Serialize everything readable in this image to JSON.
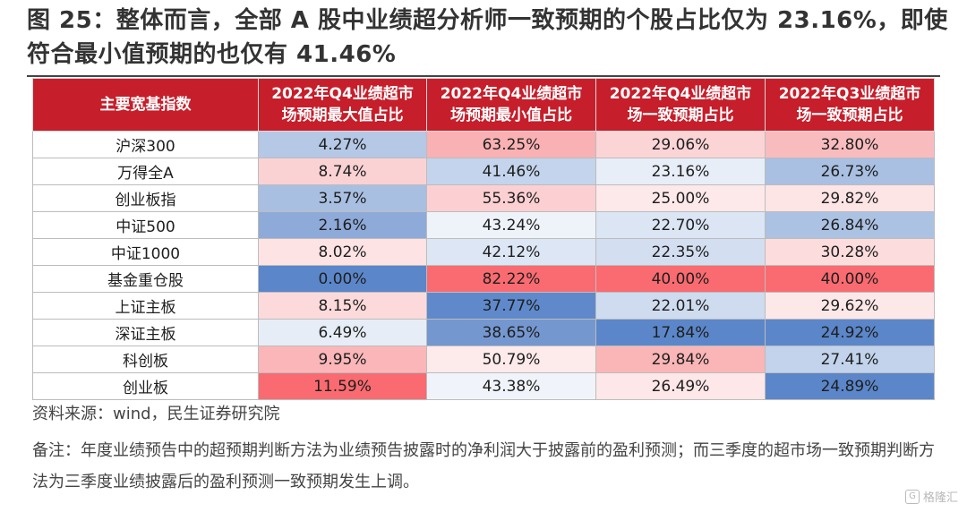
{
  "title": "图 25：整体而言，全部 A 股中业绩超分析师一致预期的个股占比仅为 23.16%，即使符合最小值预期的也仅有 41.46%",
  "table": {
    "headers": [
      "主要宽基指数",
      "2022年Q4业绩超市场预期最大值占比",
      "2022年Q4业绩超市场预期最小值占比",
      "2022年Q4业绩超市场一致预期占比",
      "2022年Q3业绩超市场一致预期占比"
    ],
    "rows": [
      {
        "name": "沪深300",
        "values": [
          "4.27%",
          "63.25%",
          "29.06%",
          "32.80%"
        ],
        "colors": [
          "#b5c8e6",
          "#f9b1b3",
          "#fbd4d6",
          "#f9bcbe"
        ]
      },
      {
        "name": "万得全A",
        "values": [
          "8.74%",
          "41.46%",
          "23.16%",
          "26.73%"
        ],
        "colors": [
          "#fbd2d4",
          "#c3d4ec",
          "#e8eef8",
          "#a9c0e2"
        ]
      },
      {
        "name": "创业板指",
        "values": [
          "3.57%",
          "55.36%",
          "25.00%",
          "29.82%"
        ],
        "colors": [
          "#a9bfe1",
          "#fcd0d2",
          "#fde9ea",
          "#fde4e5"
        ]
      },
      {
        "name": "中证500",
        "values": [
          "2.16%",
          "43.24%",
          "22.70%",
          "26.84%"
        ],
        "colors": [
          "#8eaad8",
          "#eef2f9",
          "#dbe5f4",
          "#acc2e3"
        ]
      },
      {
        "name": "中证1000",
        "values": [
          "8.02%",
          "42.12%",
          "22.35%",
          "30.28%"
        ],
        "colors": [
          "#fde3e4",
          "#dde6f4",
          "#d3def1",
          "#fcdcdd"
        ]
      },
      {
        "name": "基金重仓股",
        "values": [
          "0.00%",
          "82.22%",
          "40.00%",
          "40.00%"
        ],
        "colors": [
          "#5b86c9",
          "#f96b70",
          "#f96b70",
          "#f96b70"
        ]
      },
      {
        "name": "上证主板",
        "values": [
          "8.15%",
          "37.77%",
          "22.01%",
          "29.62%"
        ],
        "colors": [
          "#fcdadb",
          "#5f89ca",
          "#cfdbef",
          "#fde8e9"
        ]
      },
      {
        "name": "深证主板",
        "values": [
          "6.49%",
          "38.65%",
          "17.84%",
          "24.92%"
        ],
        "colors": [
          "#e7edf7",
          "#7497d0",
          "#5b86c9",
          "#5b86c9"
        ]
      },
      {
        "name": "科创板",
        "values": [
          "9.95%",
          "50.79%",
          "29.84%",
          "27.41%"
        ],
        "colors": [
          "#fab6b8",
          "#fdeaea",
          "#fab5b7",
          "#c2d3eb"
        ]
      },
      {
        "name": "创业板",
        "values": [
          "11.59%",
          "43.38%",
          "26.49%",
          "24.89%"
        ],
        "colors": [
          "#f96b70",
          "#f0f4fa",
          "#fde7e8",
          "#5b86c9"
        ]
      }
    ]
  },
  "source": "资料来源：wind，民生证券研究院",
  "note": "备注：年度业绩预告中的超预期判断方法为业绩预告披露时的净利润大于披露前的盈利预测；而三季度的超市场一致预期判断方法为三季度业绩披露后的盈利预测一致预期发生上调。",
  "watermark": "格隆汇"
}
